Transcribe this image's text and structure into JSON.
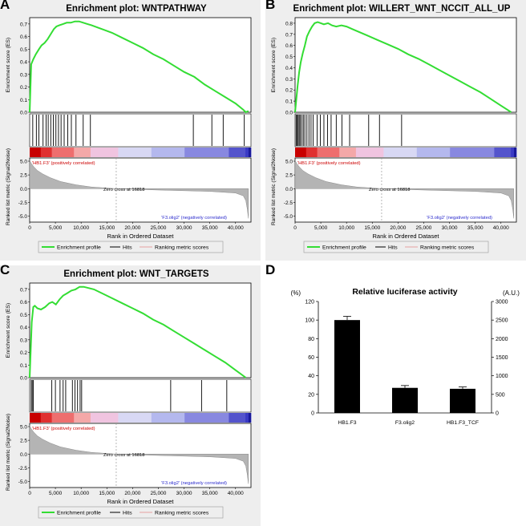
{
  "panels": [
    {
      "letter": "A",
      "title": "Enrichment plot: WNTPATHWAY",
      "ylabel_es": "Enrichment score (ES)",
      "ylabel_rank": "Ranked list metric (Signal2Noise)",
      "xlabel": "Rank in Ordered Dataset",
      "pos_label": "'HB1.F3' (positively correlated)",
      "neg_label": "'F3.olig2' (negatively correlated)",
      "zero_cross": "Zero cross at 16818",
      "legend": [
        "Enrichment profile",
        "Hits",
        "Ranking metric scores"
      ],
      "es_ticks": [
        "0.0",
        "0.1",
        "0.2",
        "0.3",
        "0.4",
        "0.5",
        "0.6",
        "0.7"
      ],
      "rank_ticks": [
        "5.0",
        "2.5",
        "0.0",
        "-2.5",
        "-5.0"
      ],
      "x_ticks": [
        "0",
        "5,000",
        "10,000",
        "15,000",
        "20,000",
        "25,000",
        "30,000",
        "35,000",
        "40,000"
      ]
    },
    {
      "letter": "B",
      "title": "Enrichment plot: WILLERT_WNT_NCCIT_ALL_UP",
      "ylabel_es": "Enrichment score (ES)",
      "ylabel_rank": "Ranked list metric (Signal2Noise)",
      "xlabel": "Rank in Ordered Dataset",
      "pos_label": "'HB1.F3' (positively correlated)",
      "neg_label": "'F3.olig2' (negatively correlated)",
      "zero_cross": "Zero cross at 16818",
      "legend": [
        "Enrichment profile",
        "Hits",
        "Ranking metric scores"
      ],
      "es_ticks": [
        "0.0",
        "0.1",
        "0.2",
        "0.3",
        "0.4",
        "0.5",
        "0.6",
        "0.7",
        "0.8"
      ],
      "rank_ticks": [
        "5.0",
        "2.5",
        "0.0",
        "-2.5",
        "-5.0"
      ],
      "x_ticks": [
        "0",
        "5,000",
        "10,000",
        "15,000",
        "20,000",
        "25,000",
        "30,000",
        "35,000",
        "40,000"
      ]
    },
    {
      "letter": "C",
      "title": "Enrichment plot: WNT_TARGETS",
      "ylabel_es": "Enrichment score (ES)",
      "ylabel_rank": "Ranked list metric (Signal2Noise)",
      "xlabel": "Rank in Ordered Dataset",
      "pos_label": "'HB1.F3' (positively correlated)",
      "neg_label": "'F3.olig2' (negatively correlated)",
      "zero_cross": "Zero cross at 16818",
      "legend": [
        "Enrichment profile",
        "Hits",
        "Ranking metric scores"
      ],
      "es_ticks": [
        "0.0",
        "0.1",
        "0.2",
        "0.3",
        "0.4",
        "0.5",
        "0.6",
        "0.7"
      ],
      "rank_ticks": [
        "5.0",
        "2.5",
        "0.0",
        "-2.5",
        "-5.0"
      ],
      "x_ticks": [
        "0",
        "5,000",
        "10,000",
        "15,000",
        "20,000",
        "25,000",
        "30,000",
        "35,000",
        "40,000"
      ]
    },
    {
      "letter": "D",
      "title": "Relative luciferase activity",
      "left_unit": "(%)",
      "right_unit": "(A.U.)",
      "left_ticks": [
        "0",
        "20",
        "40",
        "60",
        "80",
        "100",
        "120"
      ],
      "right_ticks": [
        "0",
        "500",
        "1000",
        "1500",
        "2000",
        "2500",
        "3000"
      ]
    }
  ],
  "colors": {
    "es_line": "#33dd33",
    "rank_fill": "#b4b4b4",
    "pos_text": "#cc0000",
    "neg_text": "#2a2acc",
    "bar": "#000000",
    "panel_bg": "#eeeeee"
  },
  "chart_data": [
    {
      "type": "line",
      "title": "Enrichment plot: WNTPATHWAY",
      "xlabel": "Rank in Ordered Dataset",
      "ylabel": "Enrichment score (ES)",
      "xlim": [
        0,
        43000
      ],
      "ylim": [
        0,
        0.75
      ],
      "x": [
        0,
        300,
        700,
        1200,
        1800,
        2300,
        2900,
        3500,
        4100,
        4700,
        5200,
        5800,
        6500,
        7200,
        8000,
        8800,
        9600,
        10400,
        11200,
        12000,
        14000,
        16000,
        18000,
        20000,
        22000,
        24000,
        26000,
        28000,
        30000,
        32000,
        34000,
        36000,
        38000,
        40000,
        41500,
        42000,
        42500
      ],
      "y": [
        0.0,
        0.38,
        0.42,
        0.46,
        0.5,
        0.53,
        0.55,
        0.58,
        0.62,
        0.66,
        0.68,
        0.69,
        0.7,
        0.71,
        0.71,
        0.72,
        0.72,
        0.71,
        0.7,
        0.69,
        0.66,
        0.63,
        0.59,
        0.55,
        0.51,
        0.46,
        0.42,
        0.37,
        0.32,
        0.28,
        0.22,
        0.17,
        0.12,
        0.07,
        0.02,
        0.0,
        0.01
      ],
      "hits": [
        600,
        1300,
        1800,
        2600,
        3200,
        3600,
        4100,
        4600,
        5100,
        5600,
        6100,
        6700,
        7400,
        8100,
        9000,
        10400,
        11800,
        31800,
        35400,
        37600,
        41700
      ]
    },
    {
      "type": "line",
      "title": "Enrichment plot: WILLERT_WNT_NCCIT_ALL_UP",
      "xlabel": "Rank in Ordered Dataset",
      "ylabel": "Enrichment score (ES)",
      "xlim": [
        0,
        43000
      ],
      "ylim": [
        0,
        0.85
      ],
      "x": [
        0,
        250,
        500,
        800,
        1100,
        1500,
        1900,
        2300,
        2800,
        3300,
        3800,
        4400,
        5000,
        5600,
        6400,
        7200,
        8000,
        9000,
        10000,
        11000,
        12000,
        14000,
        16000,
        18000,
        20000,
        22000,
        24000,
        26000,
        28000,
        30000,
        32000,
        34000,
        36000,
        38000,
        40000,
        42000
      ],
      "y": [
        0.0,
        0.12,
        0.24,
        0.36,
        0.45,
        0.53,
        0.6,
        0.68,
        0.73,
        0.77,
        0.8,
        0.81,
        0.8,
        0.79,
        0.8,
        0.78,
        0.77,
        0.78,
        0.77,
        0.75,
        0.73,
        0.69,
        0.65,
        0.61,
        0.57,
        0.52,
        0.48,
        0.43,
        0.38,
        0.33,
        0.28,
        0.23,
        0.18,
        0.12,
        0.06,
        0.0
      ],
      "hits": [
        200,
        400,
        600,
        800,
        1000,
        1300,
        1600,
        1900,
        2300,
        2700,
        3100,
        3500,
        4300,
        4900,
        5600,
        6300,
        7000,
        8000,
        9100,
        10600,
        14300,
        16400,
        20700
      ]
    },
    {
      "type": "line",
      "title": "Enrichment plot: WNT_TARGETS",
      "xlabel": "Rank in Ordered Dataset",
      "ylabel": "Enrichment score (ES)",
      "xlim": [
        0,
        43000
      ],
      "ylim": [
        0,
        0.75
      ],
      "x": [
        0,
        200,
        400,
        700,
        1000,
        1500,
        2200,
        3000,
        3800,
        4400,
        5100,
        5800,
        6500,
        7300,
        8100,
        8900,
        9700,
        10500,
        11500,
        12500,
        14000,
        16000,
        18000,
        20000,
        22000,
        24000,
        26000,
        28000,
        30000,
        32000,
        34000,
        36000,
        38000,
        40000,
        42000
      ],
      "y": [
        0.0,
        0.22,
        0.44,
        0.56,
        0.57,
        0.55,
        0.54,
        0.56,
        0.59,
        0.6,
        0.58,
        0.62,
        0.65,
        0.67,
        0.69,
        0.7,
        0.72,
        0.72,
        0.71,
        0.7,
        0.67,
        0.63,
        0.59,
        0.55,
        0.51,
        0.46,
        0.42,
        0.37,
        0.32,
        0.27,
        0.22,
        0.17,
        0.12,
        0.06,
        0.0
      ],
      "hits": [
        300,
        500,
        700,
        4300,
        5000,
        5900,
        6500,
        7000,
        8300,
        8800,
        9300,
        9800,
        10100,
        27400,
        33400,
        38300
      ]
    },
    {
      "type": "bar",
      "title": "Relative luciferase activity",
      "categories": [
        "HB1.F3",
        "F3.olig2",
        "HB1.F3_TCF"
      ],
      "values": [
        100,
        27,
        26
      ],
      "errors": [
        4,
        2.5,
        2
      ],
      "ylabel": "(%)",
      "ylim": [
        0,
        120
      ],
      "y2label": "(A.U.)",
      "y2lim": [
        0,
        3000
      ]
    }
  ]
}
